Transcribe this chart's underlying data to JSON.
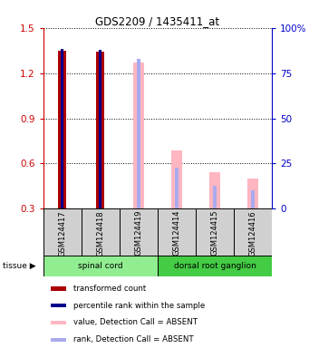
{
  "title": "GDS2209 / 1435411_at",
  "samples": [
    "GSM124417",
    "GSM124418",
    "GSM124419",
    "GSM124414",
    "GSM124415",
    "GSM124416"
  ],
  "transformed_count": [
    1.35,
    1.34,
    null,
    null,
    null,
    null
  ],
  "percentile_rank": [
    1.36,
    1.355,
    null,
    null,
    null,
    null
  ],
  "value_absent": [
    null,
    null,
    1.27,
    0.69,
    0.54,
    0.5
  ],
  "rank_absent": [
    null,
    null,
    1.295,
    0.575,
    0.455,
    0.42
  ],
  "ylim": [
    0.3,
    1.5
  ],
  "yticks_left": [
    0.3,
    0.6,
    0.9,
    1.2,
    1.5
  ],
  "yticks_right": [
    0,
    25,
    50,
    75,
    100
  ],
  "ylabel_left_color": "#cc0000",
  "ylabel_right_color": "#0000cc",
  "transformed_count_color": "#aa0000",
  "percentile_rank_color": "#00008B",
  "value_absent_color": "#FFB6C1",
  "rank_absent_color": "#AAAAEE",
  "tissue_groups": [
    {
      "start": 0,
      "end": 2,
      "label": "spinal cord",
      "color": "#90EE90"
    },
    {
      "start": 3,
      "end": 5,
      "label": "dorsal root ganglion",
      "color": "#44CC44"
    }
  ],
  "legend_items": [
    {
      "color": "#aa0000",
      "label": "transformed count"
    },
    {
      "color": "#00008B",
      "label": "percentile rank within the sample"
    },
    {
      "color": "#FFB6C1",
      "label": "value, Detection Call = ABSENT"
    },
    {
      "color": "#AAAAEE",
      "label": "rank, Detection Call = ABSENT"
    }
  ]
}
